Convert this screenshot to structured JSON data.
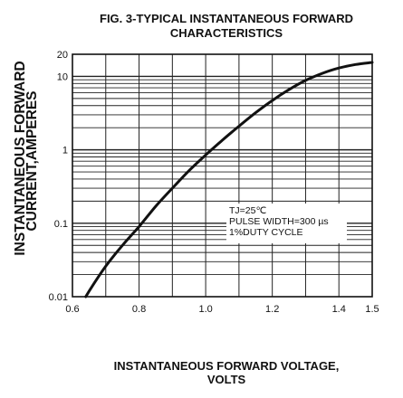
{
  "chart_data": {
    "type": "line",
    "title_line1": "FIG. 3-TYPICAL INSTANTANEOUS FORWARD",
    "title_line2": "CHARACTERISTICS",
    "xlabel_line1": "INSTANTANEOUS FORWARD VOLTAGE,",
    "xlabel_line2": "VOLTS",
    "ylabel_line1": "INSTANTANEOUS FORWARD",
    "ylabel_line2": "CURRENT,AMPERES",
    "x_scale": "linear",
    "y_scale": "log",
    "xlim": [
      0.6,
      1.5
    ],
    "ylim": [
      0.01,
      20
    ],
    "x_ticks": [
      "0.6",
      "0.8",
      "1.0",
      "1.2",
      "1.4",
      "1.5"
    ],
    "x_tick_values": [
      0.6,
      0.8,
      1.0,
      1.2,
      1.4,
      1.5
    ],
    "y_ticks": [
      "0.01",
      "0.1",
      "1",
      "10",
      "20"
    ],
    "y_tick_values": [
      0.01,
      0.1,
      1,
      10,
      20
    ],
    "grid": true,
    "x": [
      0.64,
      0.66,
      0.7,
      0.75,
      0.8,
      0.85,
      0.9,
      0.95,
      1.0,
      1.05,
      1.1,
      1.15,
      1.2,
      1.25,
      1.3,
      1.35,
      1.4,
      1.45,
      1.5
    ],
    "y": [
      0.01,
      0.014,
      0.026,
      0.05,
      0.09,
      0.17,
      0.3,
      0.52,
      0.85,
      1.35,
      2.1,
      3.2,
      4.7,
      6.6,
      8.8,
      11.0,
      13.0,
      14.5,
      15.5
    ],
    "annotations": [
      "TJ=25℃",
      "PULSE WIDTH=300 µs",
      "1%DUTY CYCLE"
    ]
  }
}
